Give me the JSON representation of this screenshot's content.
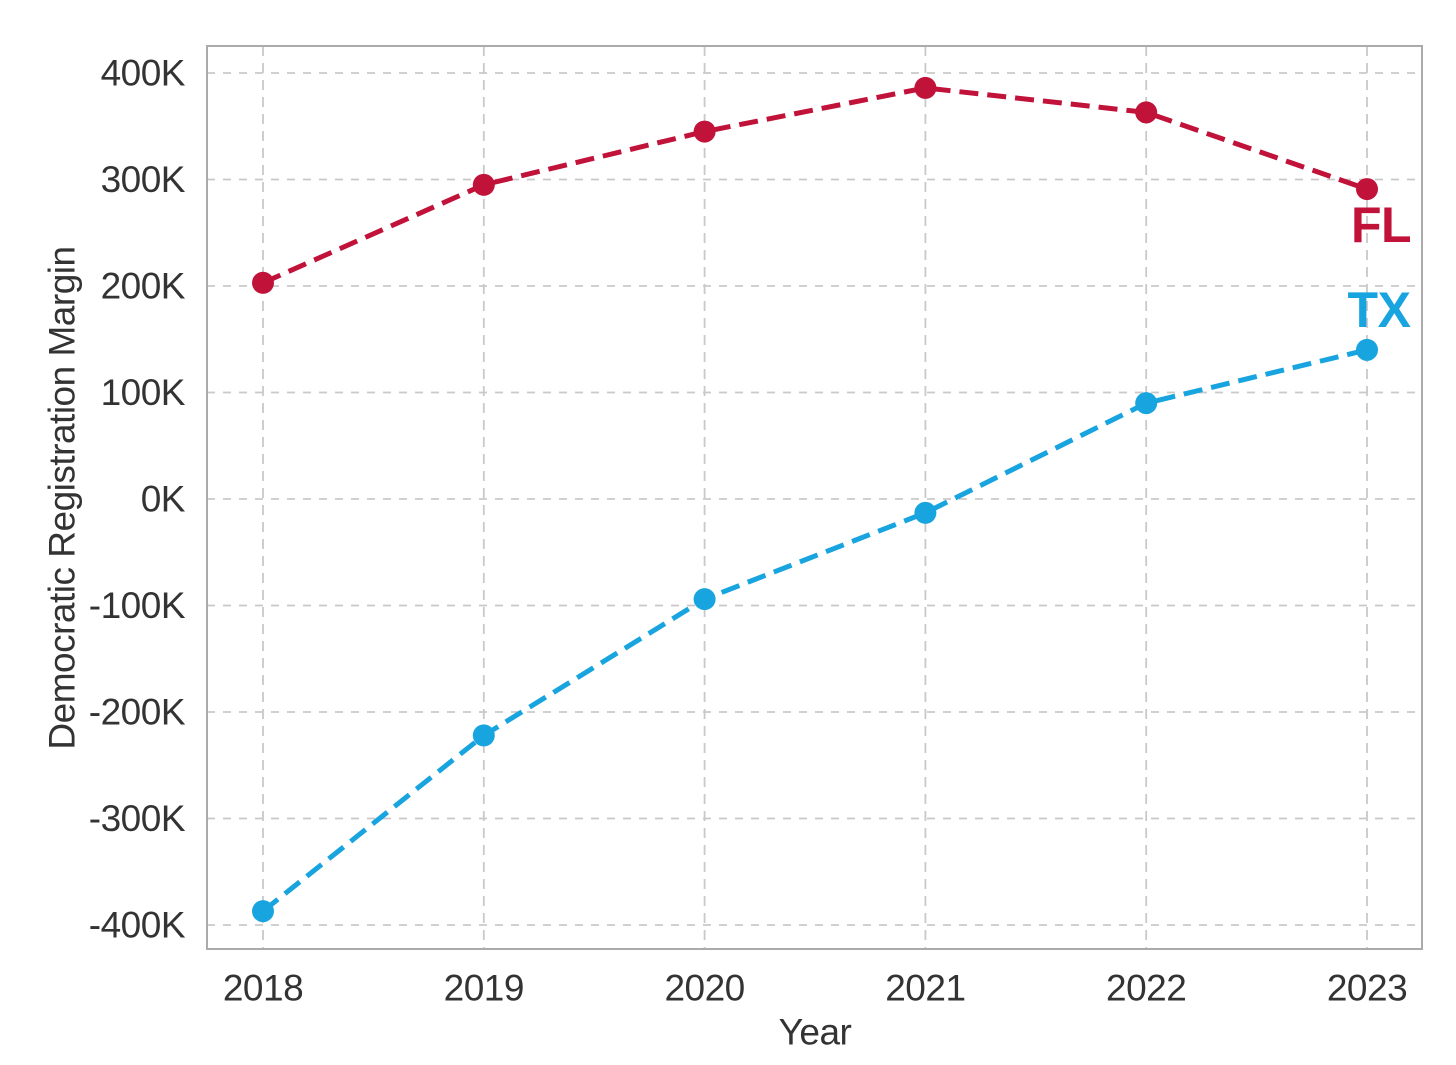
{
  "style": {
    "background": "#ffffff",
    "grid_color": "#c9c9c9",
    "spine_color": "#ababab",
    "text_color": "#333333"
  },
  "chart_data": {
    "type": "line",
    "title": "",
    "xlabel": "Year",
    "ylabel": "Democratic Registration Margin",
    "x": [
      2018,
      2019,
      2020,
      2021,
      2022,
      2023
    ],
    "x_tick_labels": [
      "2018",
      "2019",
      "2020",
      "2021",
      "2022",
      "2023"
    ],
    "y_tick_values_thousands": [
      400,
      300,
      200,
      100,
      0,
      -100,
      -200,
      -300,
      -400
    ],
    "y_tick_labels": [
      "400K",
      "300K",
      "200K",
      "100K",
      "0K",
      "-100K",
      "-200K",
      "-300K",
      "-400K"
    ],
    "ylim_thousands": [
      -422,
      425
    ],
    "xlim": [
      2017.75,
      2023.25
    ],
    "grid": true,
    "line_style": "dashed",
    "marker": "circle",
    "legend_position": "inline-end-labels",
    "series": [
      {
        "name": "FL",
        "end_label": "FL",
        "color": "#C1123A",
        "values_thousands": [
          203,
          295,
          345,
          386,
          363,
          291
        ],
        "label_offset": [
          14,
          36
        ]
      },
      {
        "name": "TX",
        "end_label": "TX",
        "color": "#18A4DF",
        "values_thousands": [
          -387,
          -222,
          -94,
          -13,
          90,
          140
        ],
        "label_offset": [
          12,
          -40
        ]
      }
    ]
  }
}
